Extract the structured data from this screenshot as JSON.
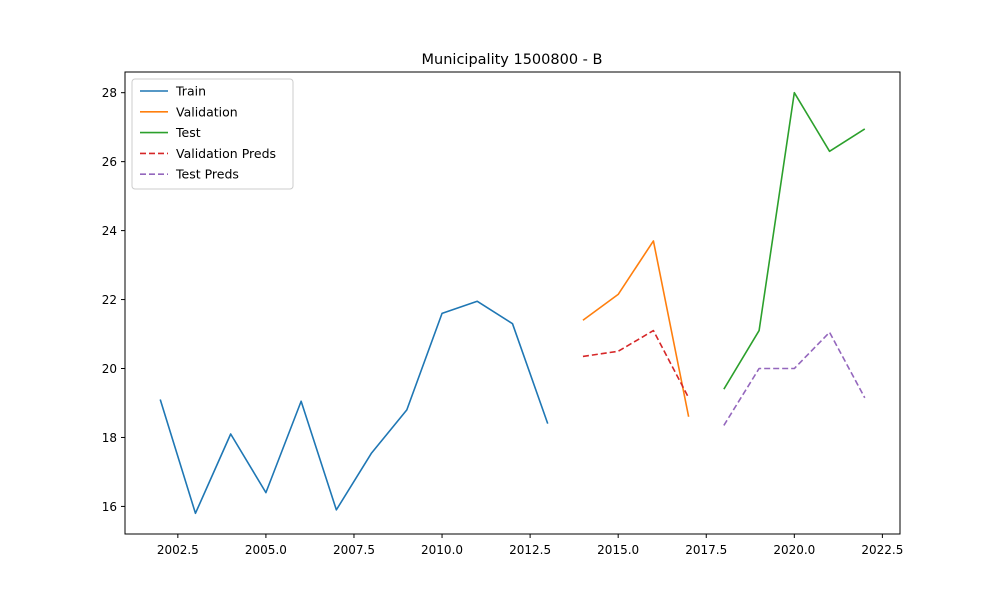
{
  "chart_data": {
    "type": "line",
    "title": "Municipality 1500800 - B",
    "xlabel": "",
    "ylabel": "",
    "xlim": [
      2001.0,
      2023.0
    ],
    "ylim": [
      15.2,
      28.6
    ],
    "xticks": [
      2002.5,
      2005.0,
      2007.5,
      2010.0,
      2012.5,
      2015.0,
      2017.5,
      2020.0,
      2022.5
    ],
    "xtick_labels": [
      "2002.5",
      "2005.0",
      "2007.5",
      "2010.0",
      "2012.5",
      "2015.0",
      "2017.5",
      "2020.0",
      "2022.5"
    ],
    "yticks": [
      16,
      18,
      20,
      22,
      24,
      26,
      28
    ],
    "ytick_labels": [
      "16",
      "18",
      "20",
      "22",
      "24",
      "26",
      "28"
    ],
    "grid": false,
    "legend_position": "top-left",
    "series": [
      {
        "name": "Train",
        "color": "#1f77b4",
        "style": "solid",
        "x": [
          2002,
          2003,
          2004,
          2005,
          2006,
          2007,
          2008,
          2009,
          2010,
          2011,
          2012,
          2013
        ],
        "y": [
          19.1,
          15.8,
          18.1,
          16.4,
          19.05,
          15.9,
          17.55,
          18.8,
          21.6,
          21.95,
          21.3,
          18.4
        ]
      },
      {
        "name": "Validation",
        "color": "#ff7f0e",
        "style": "solid",
        "x": [
          2014,
          2015,
          2016,
          2017
        ],
        "y": [
          21.4,
          22.15,
          23.7,
          18.6
        ]
      },
      {
        "name": "Test",
        "color": "#2ca02c",
        "style": "solid",
        "x": [
          2018,
          2019,
          2020,
          2021,
          2022
        ],
        "y": [
          19.4,
          21.1,
          28.0,
          26.3,
          26.95
        ]
      },
      {
        "name": "Validation Preds",
        "color": "#d62728",
        "style": "dashed",
        "x": [
          2014,
          2015,
          2016,
          2017
        ],
        "y": [
          20.35,
          20.5,
          21.1,
          19.15
        ]
      },
      {
        "name": "Test Preds",
        "color": "#9467bd",
        "style": "dashed",
        "x": [
          2018,
          2019,
          2020,
          2021,
          2022
        ],
        "y": [
          18.35,
          20.0,
          20.0,
          21.05,
          19.15
        ]
      }
    ]
  }
}
